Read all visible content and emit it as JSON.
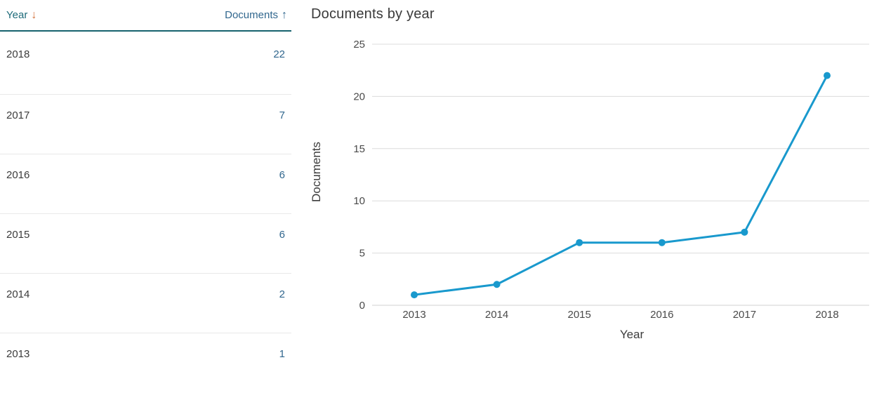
{
  "table": {
    "headers": {
      "year": "Year",
      "documents": "Documents"
    },
    "sort": {
      "year_arrow": "↓",
      "documents_arrow": "↑"
    },
    "rows": [
      {
        "year": "2018",
        "documents": "22"
      },
      {
        "year": "2017",
        "documents": "7"
      },
      {
        "year": "2016",
        "documents": "6"
      },
      {
        "year": "2015",
        "documents": "6"
      },
      {
        "year": "2014",
        "documents": "2"
      },
      {
        "year": "2013",
        "documents": "1"
      }
    ]
  },
  "chart": {
    "title": "Documents by year"
  },
  "chart_data": {
    "type": "line",
    "title": "Documents by year",
    "x": [
      "2013",
      "2014",
      "2015",
      "2016",
      "2017",
      "2018"
    ],
    "series": [
      {
        "name": "Documents",
        "values": [
          1,
          2,
          6,
          6,
          7,
          22
        ]
      }
    ],
    "xlabel": "Year",
    "ylabel": "Documents",
    "ylim": [
      0,
      25
    ],
    "yticks": [
      0,
      5,
      10,
      15,
      20,
      25
    ],
    "grid": "horizontal",
    "legend": "none",
    "line_color": "#1999cd",
    "marker_color": "#1999cd"
  },
  "colors": {
    "header_teal": "#1e6b7a",
    "header_rule_teal": "#17626e",
    "sort_desc_orange": "#d2703a",
    "link_blue": "#31678e",
    "line_teal_blue": "#1999cd",
    "gridline_gray": "#dcdcdc",
    "text_dark_gray": "#3b3b3b"
  }
}
